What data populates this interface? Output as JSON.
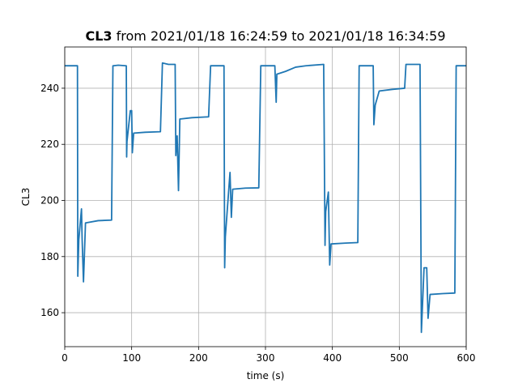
{
  "chart_data": {
    "type": "line",
    "title_parts": [
      "CL3",
      "from 2021/01/18 16:24:59 to 2021/01/18 16:34:59"
    ],
    "xlabel": "time (s)",
    "ylabel": "CL3",
    "x": [
      0,
      19,
      19.5,
      21,
      25,
      26,
      28,
      31,
      50,
      70,
      72,
      80,
      92,
      92.5,
      93,
      98,
      100,
      101,
      103,
      120,
      143,
      146,
      155,
      165,
      166,
      168,
      170,
      172,
      190,
      215,
      218,
      230,
      238,
      239,
      240,
      247,
      249,
      251,
      270,
      290,
      293,
      305,
      314,
      316,
      317,
      330,
      345,
      360,
      387,
      389,
      390,
      394,
      396,
      398,
      420,
      438,
      440,
      450,
      461,
      462,
      464,
      470,
      490,
      508,
      510,
      520,
      531,
      533,
      537,
      541,
      543,
      546,
      565,
      583,
      585,
      600
    ],
    "series": [
      {
        "name": "CL3",
        "color": "#1f77b4",
        "values": [
          248,
          248,
          173,
          186,
          197,
          186,
          171,
          192,
          192.8,
          193,
          248,
          248.2,
          248,
          215.5,
          221,
          232,
          232,
          217,
          224,
          224.3,
          224.5,
          249,
          248.5,
          248.5,
          216,
          223,
          203.5,
          229,
          229.5,
          229.8,
          248,
          248,
          248,
          176,
          187,
          210,
          194,
          204,
          204.4,
          204.5,
          248,
          248,
          248,
          235,
          245,
          246,
          247.5,
          248,
          248.5,
          184,
          196,
          203,
          177,
          184.5,
          184.8,
          185,
          248,
          248,
          248,
          227,
          234,
          239,
          239.6,
          240,
          248.5,
          248.5,
          248.5,
          153,
          176,
          176,
          158,
          166.5,
          166.8,
          167,
          248,
          248
        ]
      }
    ],
    "xlim": [
      0,
      600
    ],
    "ylim": [
      147.9,
      254.7
    ],
    "xticks": [
      0,
      100,
      200,
      300,
      400,
      500,
      600
    ],
    "yticks": [
      160,
      180,
      200,
      220,
      240
    ],
    "grid": true
  }
}
